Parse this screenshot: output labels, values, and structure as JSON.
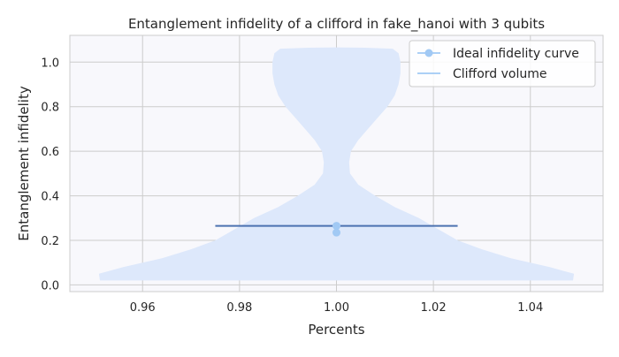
{
  "chart_data": {
    "type": "violin",
    "title": "Entanglement infidelity of a clifford in fake_hanoi with 3 qubits",
    "xlabel": "Percents",
    "ylabel": "Entanglement infidelity",
    "xlim": [
      0.945,
      1.055
    ],
    "ylim": [
      -0.03,
      1.12
    ],
    "xticks": [
      "0.96",
      "0.98",
      "1.00",
      "1.02",
      "1.04"
    ],
    "xtick_values": [
      0.96,
      0.98,
      1.0,
      1.02,
      1.04
    ],
    "yticks": [
      "0.0",
      "0.2",
      "0.4",
      "0.6",
      "0.8",
      "1.0"
    ],
    "ytick_values": [
      0.0,
      0.2,
      0.4,
      0.6,
      0.8,
      1.0
    ],
    "grid": true,
    "legend_position": "top-right",
    "legend": [
      {
        "name": "Ideal infidelity curve",
        "marker": "circle-line",
        "color": "#a1c9f4"
      },
      {
        "name": "Clifford volume",
        "marker": "line",
        "color": "#a1c9f4"
      }
    ],
    "ideal_points": [
      {
        "x": 1.0,
        "y": 0.265
      },
      {
        "x": 1.0,
        "y": 0.235
      }
    ],
    "mean_line": {
      "x_start": 0.975,
      "x_end": 1.025,
      "y": 0.265,
      "color": "#4c72b0"
    },
    "violin": {
      "center": 1.0,
      "color": "#dde8fb",
      "profile": [
        {
          "y": 0.02,
          "half_width": 0.0488
        },
        {
          "y": 0.05,
          "half_width": 0.049
        },
        {
          "y": 0.08,
          "half_width": 0.044
        },
        {
          "y": 0.12,
          "half_width": 0.036
        },
        {
          "y": 0.16,
          "half_width": 0.03
        },
        {
          "y": 0.2,
          "half_width": 0.025
        },
        {
          "y": 0.25,
          "half_width": 0.021
        },
        {
          "y": 0.3,
          "half_width": 0.017
        },
        {
          "y": 0.35,
          "half_width": 0.012
        },
        {
          "y": 0.4,
          "half_width": 0.008
        },
        {
          "y": 0.45,
          "half_width": 0.0045
        },
        {
          "y": 0.5,
          "half_width": 0.0028
        },
        {
          "y": 0.55,
          "half_width": 0.0026
        },
        {
          "y": 0.6,
          "half_width": 0.003
        },
        {
          "y": 0.65,
          "half_width": 0.0045
        },
        {
          "y": 0.7,
          "half_width": 0.0065
        },
        {
          "y": 0.75,
          "half_width": 0.0085
        },
        {
          "y": 0.8,
          "half_width": 0.0105
        },
        {
          "y": 0.85,
          "half_width": 0.012
        },
        {
          "y": 0.9,
          "half_width": 0.0128
        },
        {
          "y": 0.95,
          "half_width": 0.0132
        },
        {
          "y": 1.0,
          "half_width": 0.0132
        },
        {
          "y": 1.04,
          "half_width": 0.0128
        },
        {
          "y": 1.06,
          "half_width": 0.0116
        }
      ]
    },
    "colors": {
      "plot_background": "#f8f8fc",
      "grid": "#cccccc",
      "axes_edge": "#cccccc"
    }
  }
}
